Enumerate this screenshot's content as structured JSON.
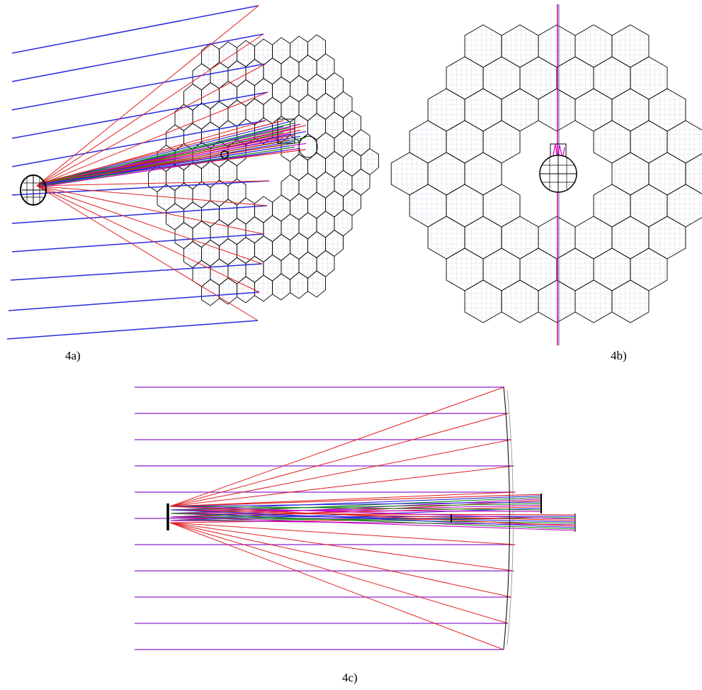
{
  "labels": {
    "a": "4a)",
    "b": "4b)",
    "c": "4c)"
  },
  "colors": {
    "segment_outline": "#000000",
    "segment_grid": "#b8bcd8",
    "incoming_ray": "#2a2ae0",
    "converging_ray": "#e02020",
    "ray_green": "#1a8a1a",
    "ray_magenta": "#c000c0",
    "ray_violet": "#8a20d0",
    "background": "#ffffff"
  },
  "panels": [
    {
      "id": "4a",
      "view": "3d-perspective",
      "segment_shape": "hexagon",
      "rays": "collimated-converging"
    },
    {
      "id": "4b",
      "view": "front",
      "segment_shape": "hexagon",
      "central_obscuration": "circular"
    },
    {
      "id": "4c",
      "view": "side",
      "rays": "collimated-converging",
      "detector": "short-bar"
    }
  ]
}
